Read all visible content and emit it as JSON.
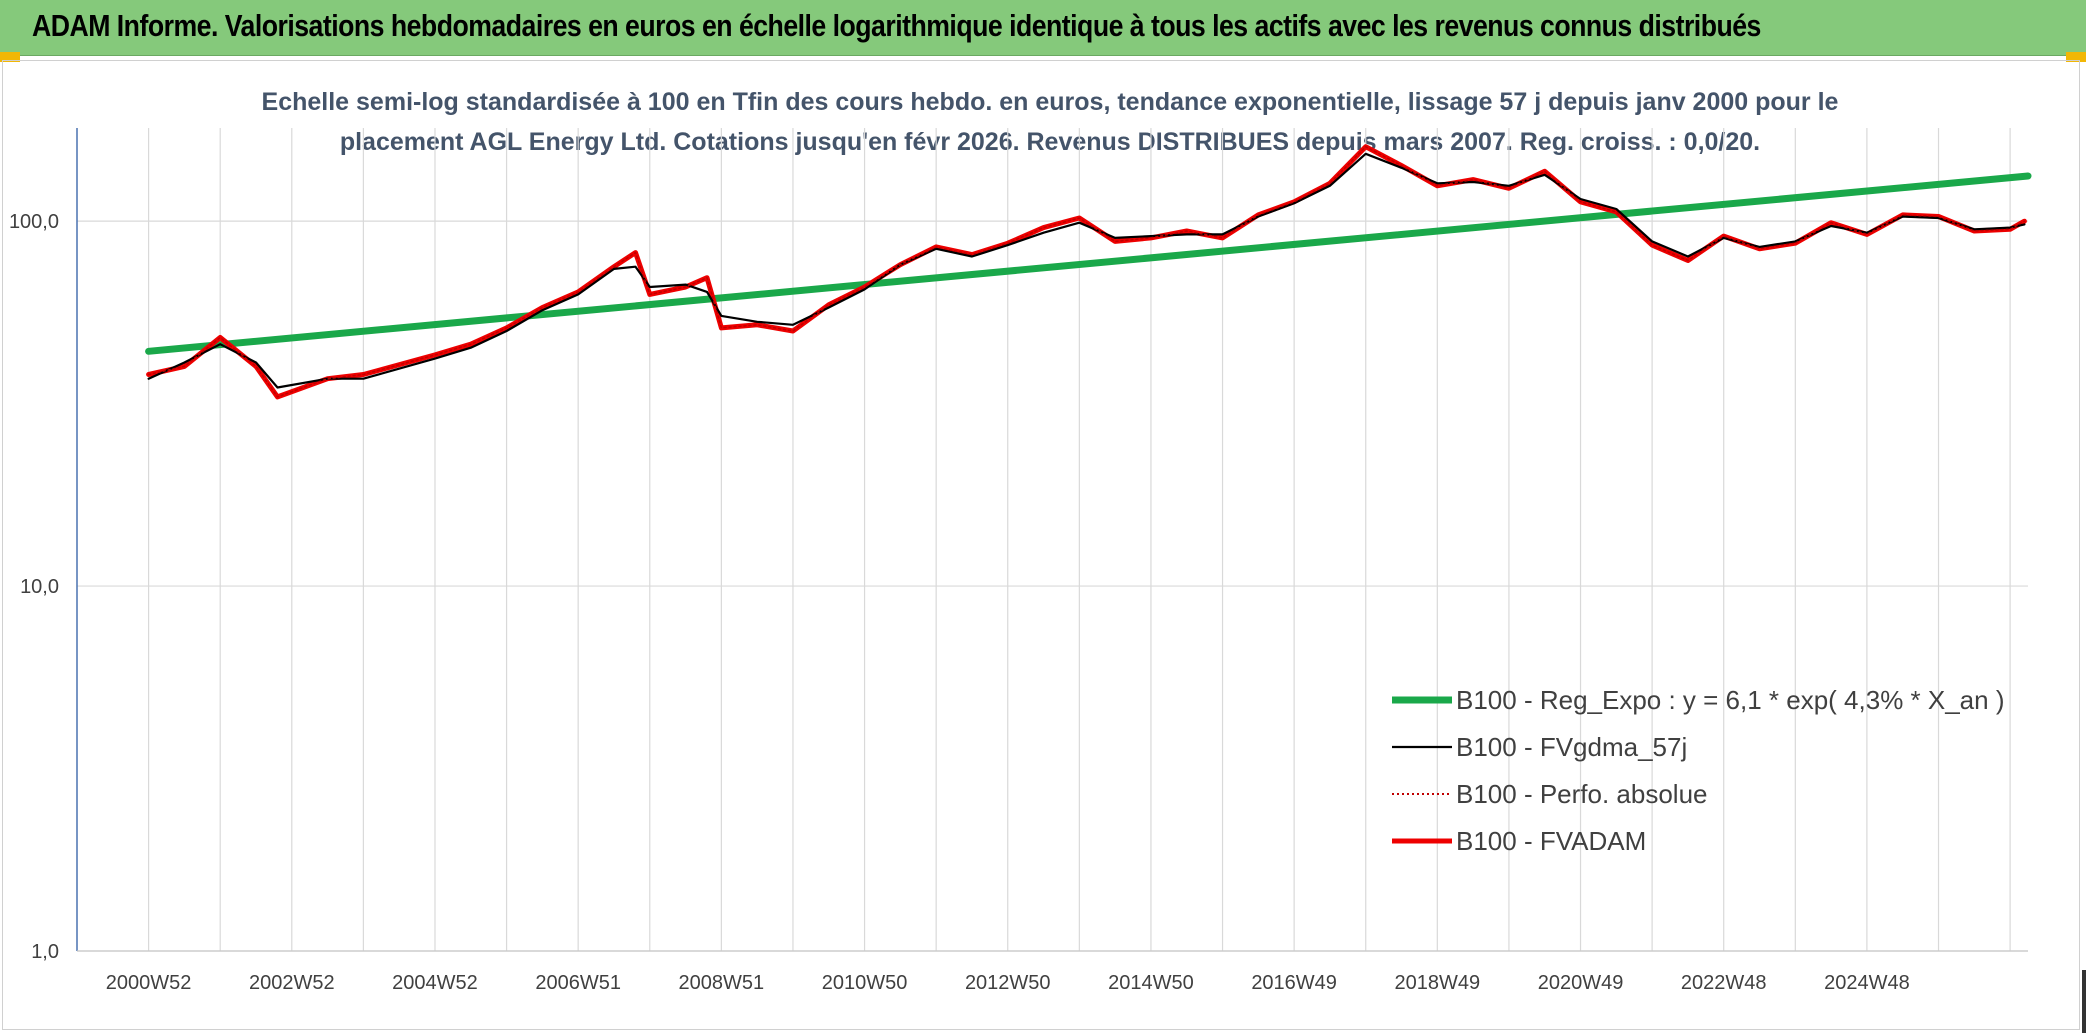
{
  "header": {
    "title": "ADAM Informe. Valorisations hebdomadaires en euros en échelle logarithmique identique à tous les actifs avec les revenus connus distribués"
  },
  "chart_data": {
    "type": "line",
    "title_line1": "Echelle semi-log standardisée à 100 en Tfin des cours hebdo. en euros, tendance exponentielle, lissage 57 j depuis janv 2000 pour le",
    "title_line2": "placement AGL Energy Ltd. Cotations jusqu'en févr 2026. Revenus DISTRIBUES depuis mars 2007. Reg. croiss. : 0,0/20.",
    "y_scale": "log",
    "ylim": [
      1,
      180
    ],
    "y_ticks": [
      "1,0",
      "10,0",
      "100,0"
    ],
    "xlim": [
      1999.0,
      2026.25
    ],
    "x_ticks": [
      "2000W52",
      "2002W52",
      "2004W52",
      "2006W51",
      "2008W51",
      "2010W50",
      "2012W50",
      "2014W50",
      "2016W49",
      "2018W49",
      "2020W49",
      "2022W48",
      "2024W48"
    ],
    "grid": true,
    "legend_position": "bottom-right",
    "colors": {
      "reg_expo": "#1aa84a",
      "fvgdma": "#000000",
      "perfo": "#c00000",
      "fvadam": "#ee0000",
      "axis": "#4a72b0",
      "grid": "#d9d9d9"
    },
    "series": [
      {
        "name": "B100 - Reg_Expo : y = 6,1 * exp( 4,3% *  X_an )",
        "style": "trend",
        "x": [
          2000.0,
          2026.25
        ],
        "y": [
          44,
          133
        ]
      },
      {
        "name": "B100 - FVgdma_57j",
        "style": "smooth",
        "x": [
          2000.0,
          2000.5,
          2001.0,
          2001.5,
          2001.8,
          2002.5,
          2003.0,
          2004.0,
          2004.5,
          2005.0,
          2005.5,
          2006.0,
          2006.5,
          2006.8,
          2007.0,
          2007.5,
          2007.8,
          2008.0,
          2008.5,
          2009.0,
          2009.5,
          2010.0,
          2010.5,
          2011.0,
          2011.5,
          2012.0,
          2012.5,
          2013.0,
          2013.5,
          2014.0,
          2014.5,
          2015.0,
          2015.5,
          2016.0,
          2016.5,
          2017.0,
          2017.5,
          2018.0,
          2018.5,
          2019.0,
          2019.5,
          2020.0,
          2020.5,
          2021.0,
          2021.5,
          2022.0,
          2022.5,
          2023.0,
          2023.5,
          2024.0,
          2024.5,
          2025.0,
          2025.5,
          2026.0,
          2026.2
        ],
        "y": [
          37,
          41,
          46,
          41,
          35,
          37,
          37,
          42,
          45,
          50,
          57,
          63,
          74,
          75,
          66,
          67,
          64,
          55,
          53,
          52,
          58,
          65,
          76,
          84,
          80,
          86,
          93,
          99,
          90,
          91,
          92,
          92,
          103,
          112,
          125,
          153,
          140,
          127,
          128,
          125,
          134,
          115,
          108,
          88,
          80,
          90,
          85,
          88,
          97,
          93,
          103,
          102,
          95,
          96,
          98
        ]
      },
      {
        "name": "B100 - Perfo. absolue",
        "style": "dotted",
        "x": [
          2000.0,
          2000.5,
          2001.0,
          2001.5,
          2001.8,
          2002.5,
          2003.0,
          2004.0,
          2004.5,
          2005.0,
          2005.5,
          2006.0,
          2006.5,
          2006.8,
          2007.0,
          2007.5,
          2007.8,
          2008.0,
          2008.5,
          2009.0,
          2009.5,
          2010.0,
          2010.5,
          2011.0,
          2011.5,
          2012.0,
          2012.5,
          2013.0,
          2013.5,
          2014.0,
          2014.5,
          2015.0,
          2015.5,
          2016.0,
          2016.5,
          2017.0,
          2017.5,
          2018.0,
          2018.5,
          2019.0,
          2019.5,
          2020.0,
          2020.5,
          2021.0,
          2021.5,
          2022.0,
          2022.5,
          2023.0,
          2023.5,
          2024.0,
          2024.5,
          2025.0,
          2025.5,
          2026.0,
          2026.2
        ],
        "y": [
          38,
          40,
          48,
          40,
          33,
          37,
          38,
          43,
          46,
          51,
          58,
          64,
          75,
          82,
          63,
          66,
          70,
          51,
          52,
          50,
          59,
          66,
          76,
          85,
          81,
          87,
          96,
          102,
          88,
          90,
          94,
          90,
          104,
          113,
          127,
          160,
          142,
          125,
          130,
          123,
          137,
          113,
          106,
          86,
          78,
          91,
          84,
          87,
          99,
          92,
          104,
          103,
          94,
          95,
          100
        ]
      },
      {
        "name": "B100 - FVADAM",
        "style": "main",
        "x": [
          2000.0,
          2000.5,
          2001.0,
          2001.5,
          2001.8,
          2002.5,
          2003.0,
          2004.0,
          2004.5,
          2005.0,
          2005.5,
          2006.0,
          2006.5,
          2006.8,
          2007.0,
          2007.5,
          2007.8,
          2008.0,
          2008.5,
          2009.0,
          2009.5,
          2010.0,
          2010.5,
          2011.0,
          2011.5,
          2012.0,
          2012.5,
          2013.0,
          2013.5,
          2014.0,
          2014.5,
          2015.0,
          2015.5,
          2016.0,
          2016.5,
          2017.0,
          2017.5,
          2018.0,
          2018.5,
          2019.0,
          2019.5,
          2020.0,
          2020.5,
          2021.0,
          2021.5,
          2022.0,
          2022.5,
          2023.0,
          2023.5,
          2024.0,
          2024.5,
          2025.0,
          2025.5,
          2026.0,
          2026.2
        ],
        "y": [
          38,
          40,
          48,
          40,
          33,
          37,
          38,
          43,
          46,
          51,
          58,
          64,
          75,
          82,
          63,
          66,
          70,
          51,
          52,
          50,
          59,
          66,
          76,
          85,
          81,
          87,
          96,
          102,
          88,
          90,
          94,
          90,
          104,
          113,
          127,
          160,
          142,
          125,
          130,
          123,
          137,
          113,
          106,
          86,
          78,
          91,
          84,
          87,
          99,
          92,
          104,
          103,
          94,
          95,
          100
        ]
      }
    ]
  }
}
